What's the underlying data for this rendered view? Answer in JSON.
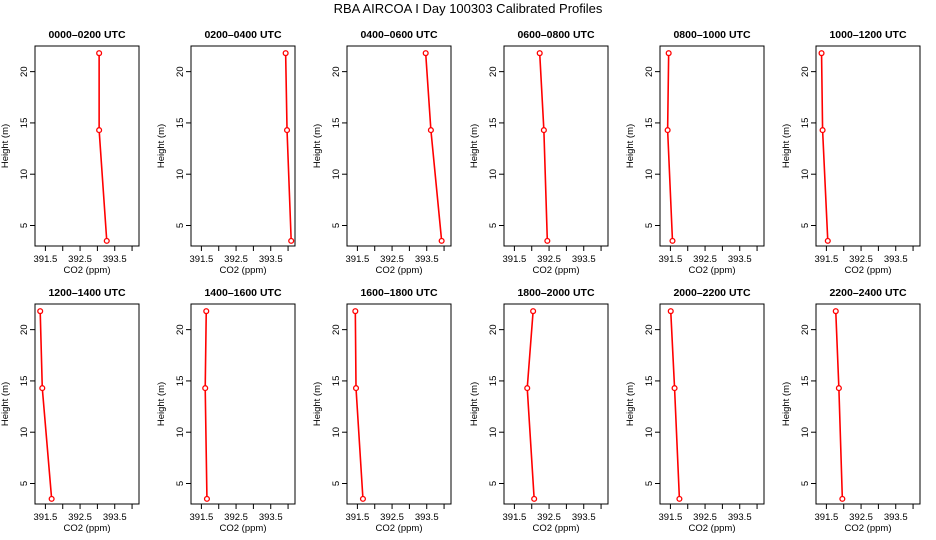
{
  "figure": {
    "title": "RBA AIRCOA I  Day 100303  Calibrated Profiles"
  },
  "panel_style": {
    "line_color": "#ff0000",
    "axis_color": "#000000"
  },
  "chart_data": [
    {
      "type": "line",
      "title": "0000–0200 UTC",
      "xlabel": "CO2 (ppm)",
      "ylabel": "Height (m)",
      "xlim": [
        391.2,
        394.2
      ],
      "ylim": [
        3.0,
        22.5
      ],
      "x_ticks": [
        "391.5",
        "392.5",
        "393.5"
      ],
      "x_tick_values": [
        391.5,
        392.5,
        393.5
      ],
      "x_minor": [
        392.0,
        393.0,
        394.0
      ],
      "y_ticks": [
        5,
        10,
        15,
        20
      ],
      "grid": false,
      "legend": false,
      "series": [
        {
          "x": [
            393.27,
            393.05,
            393.05
          ],
          "y": [
            3.5,
            14.3,
            21.8
          ]
        }
      ]
    },
    {
      "type": "line",
      "title": "0200–0400 UTC",
      "xlabel": "CO2 (ppm)",
      "ylabel": "Height (m)",
      "xlim": [
        391.2,
        394.2
      ],
      "ylim": [
        3.0,
        22.5
      ],
      "x_ticks": [
        "391.5",
        "392.5",
        "393.5"
      ],
      "x_tick_values": [
        391.5,
        392.5,
        393.5
      ],
      "x_minor": [
        392.0,
        393.0,
        394.0
      ],
      "y_ticks": [
        5,
        10,
        15,
        20
      ],
      "grid": false,
      "legend": false,
      "series": [
        {
          "x": [
            394.09,
            393.97,
            393.93
          ],
          "y": [
            3.5,
            14.3,
            21.8
          ]
        }
      ]
    },
    {
      "type": "line",
      "title": "0400–0600 UTC",
      "xlabel": "CO2 (ppm)",
      "ylabel": "Height (m)",
      "xlim": [
        391.2,
        394.2
      ],
      "ylim": [
        3.0,
        22.5
      ],
      "x_ticks": [
        "391.5",
        "392.5",
        "393.5"
      ],
      "x_tick_values": [
        391.5,
        392.5,
        393.5
      ],
      "x_minor": [
        392.0,
        393.0,
        394.0
      ],
      "y_ticks": [
        5,
        10,
        15,
        20
      ],
      "grid": false,
      "legend": false,
      "series": [
        {
          "x": [
            393.93,
            393.62,
            393.47
          ],
          "y": [
            3.5,
            14.3,
            21.8
          ]
        }
      ]
    },
    {
      "type": "line",
      "title": "0600–0800 UTC",
      "xlabel": "CO2 (ppm)",
      "ylabel": "Height (m)",
      "xlim": [
        391.2,
        394.2
      ],
      "ylim": [
        3.0,
        22.5
      ],
      "x_ticks": [
        "391.5",
        "392.5",
        "393.5"
      ],
      "x_tick_values": [
        391.5,
        392.5,
        393.5
      ],
      "x_minor": [
        392.0,
        393.0,
        394.0
      ],
      "y_ticks": [
        5,
        10,
        15,
        20
      ],
      "grid": false,
      "legend": false,
      "series": [
        {
          "x": [
            392.45,
            392.35,
            392.23
          ],
          "y": [
            3.5,
            14.3,
            21.8
          ]
        }
      ]
    },
    {
      "type": "line",
      "title": "0800–1000 UTC",
      "xlabel": "CO2 (ppm)",
      "ylabel": "Height (m)",
      "xlim": [
        391.2,
        394.2
      ],
      "ylim": [
        3.0,
        22.5
      ],
      "x_ticks": [
        "391.5",
        "392.5",
        "393.5"
      ],
      "x_tick_values": [
        391.5,
        392.5,
        393.5
      ],
      "x_minor": [
        392.0,
        393.0,
        394.0
      ],
      "y_ticks": [
        5,
        10,
        15,
        20
      ],
      "grid": false,
      "legend": false,
      "series": [
        {
          "x": [
            391.56,
            391.42,
            391.45
          ],
          "y": [
            3.5,
            14.3,
            21.8
          ]
        }
      ]
    },
    {
      "type": "line",
      "title": "1000–1200 UTC",
      "xlabel": "CO2 (ppm)",
      "ylabel": "Height (m)",
      "xlim": [
        391.2,
        394.2
      ],
      "ylim": [
        3.0,
        22.5
      ],
      "x_ticks": [
        "391.5",
        "392.5",
        "393.5"
      ],
      "x_tick_values": [
        391.5,
        392.5,
        393.5
      ],
      "x_minor": [
        392.0,
        393.0,
        394.0
      ],
      "y_ticks": [
        5,
        10,
        15,
        20
      ],
      "grid": false,
      "legend": false,
      "series": [
        {
          "x": [
            391.54,
            391.39,
            391.36
          ],
          "y": [
            3.5,
            14.3,
            21.8
          ]
        }
      ]
    },
    {
      "type": "line",
      "title": "1200–1400 UTC",
      "xlabel": "CO2 (ppm)",
      "ylabel": "Height (m)",
      "xlim": [
        391.2,
        394.2
      ],
      "ylim": [
        3.0,
        22.5
      ],
      "x_ticks": [
        "391.5",
        "392.5",
        "393.5"
      ],
      "x_tick_values": [
        391.5,
        392.5,
        393.5
      ],
      "x_minor": [
        392.0,
        393.0,
        394.0
      ],
      "y_ticks": [
        5,
        10,
        15,
        20
      ],
      "grid": false,
      "legend": false,
      "series": [
        {
          "x": [
            391.68,
            391.41,
            391.35
          ],
          "y": [
            3.5,
            14.3,
            21.8
          ]
        }
      ]
    },
    {
      "type": "line",
      "title": "1400–1600 UTC",
      "xlabel": "CO2 (ppm)",
      "ylabel": "Height (m)",
      "xlim": [
        391.2,
        394.2
      ],
      "ylim": [
        3.0,
        22.5
      ],
      "x_ticks": [
        "391.5",
        "392.5",
        "393.5"
      ],
      "x_tick_values": [
        391.5,
        392.5,
        393.5
      ],
      "x_minor": [
        392.0,
        393.0,
        394.0
      ],
      "y_ticks": [
        5,
        10,
        15,
        20
      ],
      "grid": false,
      "legend": false,
      "series": [
        {
          "x": [
            391.66,
            391.61,
            391.64
          ],
          "y": [
            3.5,
            14.3,
            21.8
          ]
        }
      ]
    },
    {
      "type": "line",
      "title": "1600–1800 UTC",
      "xlabel": "CO2 (ppm)",
      "ylabel": "Height (m)",
      "xlim": [
        391.2,
        394.2
      ],
      "ylim": [
        3.0,
        22.5
      ],
      "x_ticks": [
        "391.5",
        "392.5",
        "393.5"
      ],
      "x_tick_values": [
        391.5,
        392.5,
        393.5
      ],
      "x_minor": [
        392.0,
        393.0,
        394.0
      ],
      "y_ticks": [
        5,
        10,
        15,
        20
      ],
      "grid": false,
      "legend": false,
      "series": [
        {
          "x": [
            391.66,
            391.46,
            391.44
          ],
          "y": [
            3.5,
            14.3,
            21.8
          ]
        }
      ]
    },
    {
      "type": "line",
      "title": "1800–2000 UTC",
      "xlabel": "CO2 (ppm)",
      "ylabel": "Height (m)",
      "xlim": [
        391.2,
        394.2
      ],
      "ylim": [
        3.0,
        22.5
      ],
      "x_ticks": [
        "391.5",
        "392.5",
        "393.5"
      ],
      "x_tick_values": [
        391.5,
        392.5,
        393.5
      ],
      "x_minor": [
        392.0,
        393.0,
        394.0
      ],
      "y_ticks": [
        5,
        10,
        15,
        20
      ],
      "grid": false,
      "legend": false,
      "series": [
        {
          "x": [
            392.07,
            391.87,
            392.04
          ],
          "y": [
            3.5,
            14.3,
            21.8
          ]
        }
      ]
    },
    {
      "type": "line",
      "title": "2000–2200 UTC",
      "xlabel": "CO2 (ppm)",
      "ylabel": "Height (m)",
      "xlim": [
        391.2,
        394.2
      ],
      "ylim": [
        3.0,
        22.5
      ],
      "x_ticks": [
        "391.5",
        "392.5",
        "393.5"
      ],
      "x_tick_values": [
        391.5,
        392.5,
        393.5
      ],
      "x_minor": [
        392.0,
        393.0,
        394.0
      ],
      "y_ticks": [
        5,
        10,
        15,
        20
      ],
      "grid": false,
      "legend": false,
      "series": [
        {
          "x": [
            391.76,
            391.62,
            391.51
          ],
          "y": [
            3.5,
            14.3,
            21.8
          ]
        }
      ]
    },
    {
      "type": "line",
      "title": "2200–2400 UTC",
      "xlabel": "CO2 (ppm)",
      "ylabel": "Height (m)",
      "xlim": [
        391.2,
        394.2
      ],
      "ylim": [
        3.0,
        22.5
      ],
      "x_ticks": [
        "391.5",
        "392.5",
        "393.5"
      ],
      "x_tick_values": [
        391.5,
        392.5,
        393.5
      ],
      "x_minor": [
        392.0,
        393.0,
        394.0
      ],
      "y_ticks": [
        5,
        10,
        15,
        20
      ],
      "grid": false,
      "legend": false,
      "series": [
        {
          "x": [
            391.96,
            391.86,
            391.77
          ],
          "y": [
            3.5,
            14.3,
            21.8
          ]
        }
      ]
    }
  ]
}
